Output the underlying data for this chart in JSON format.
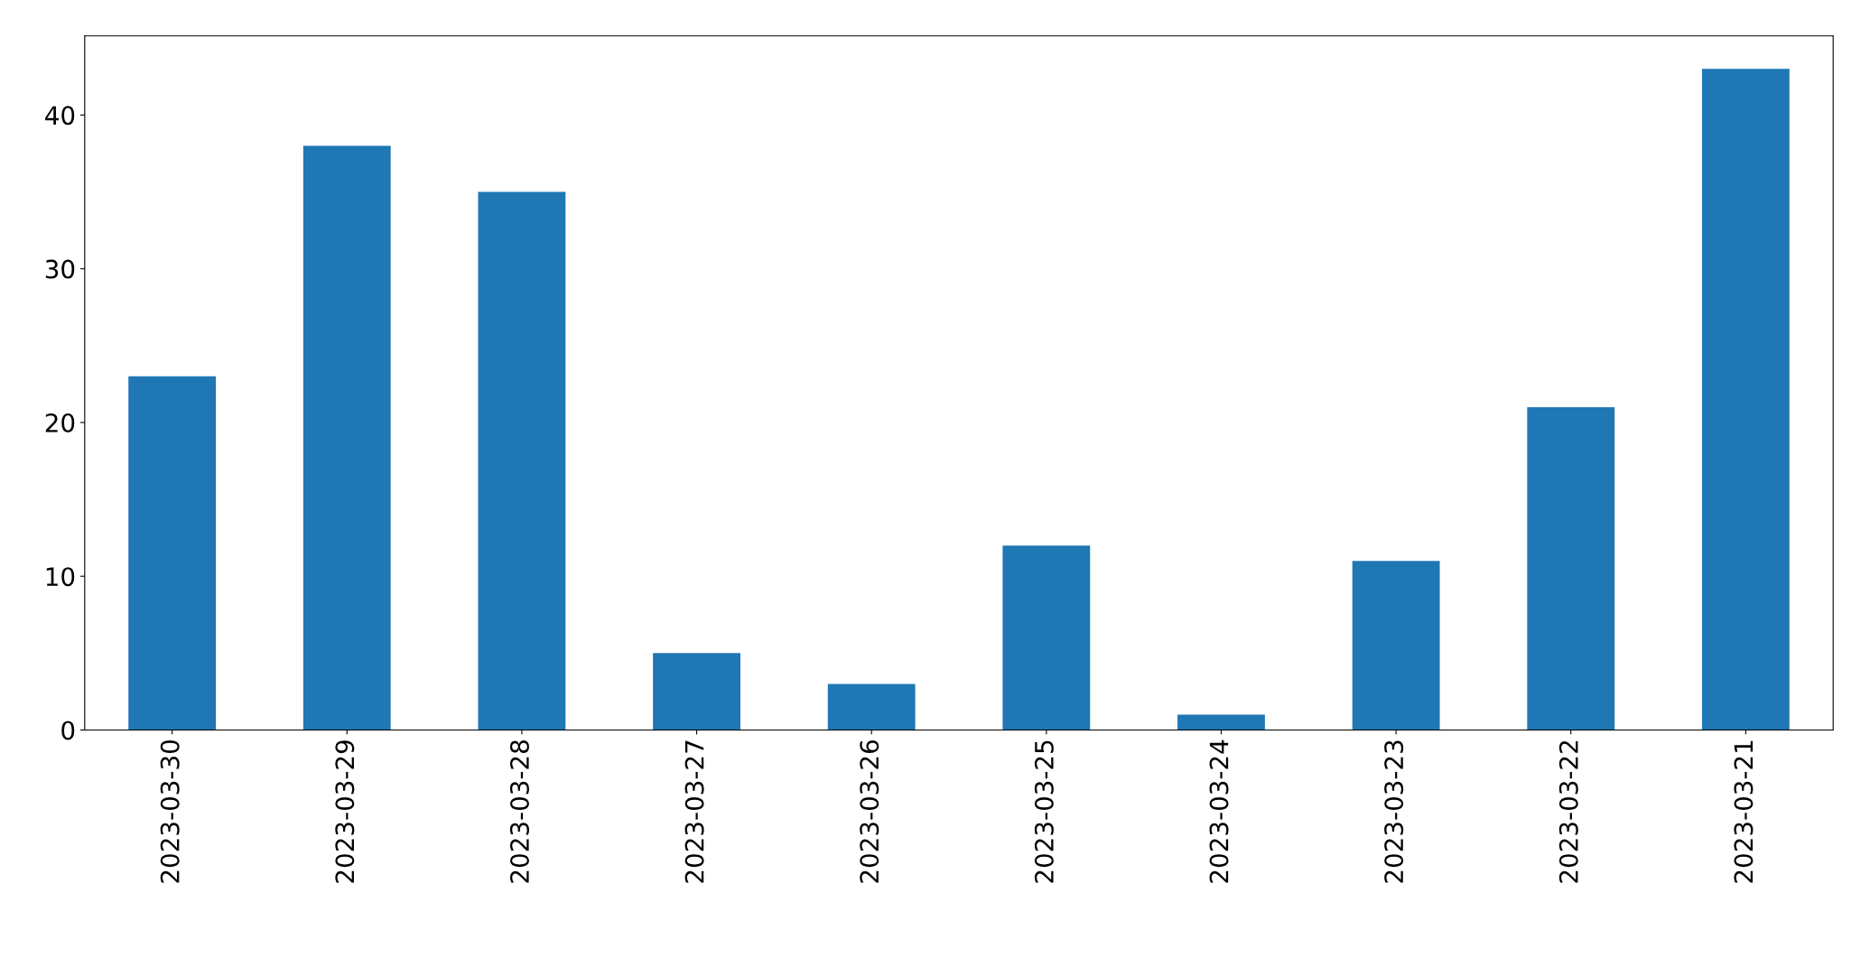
{
  "chart_data": {
    "type": "bar",
    "categories": [
      "2023-03-30",
      "2023-03-29",
      "2023-03-28",
      "2023-03-27",
      "2023-03-26",
      "2023-03-25",
      "2023-03-24",
      "2023-03-23",
      "2023-03-22",
      "2023-03-21"
    ],
    "values": [
      23,
      38,
      35,
      5,
      3,
      12,
      1,
      11,
      21,
      43
    ],
    "color": "#1f77b4",
    "ylim": [
      0,
      45.15
    ],
    "yticks": [
      0,
      10,
      20,
      30,
      40
    ],
    "grid": false,
    "legend": false
  }
}
